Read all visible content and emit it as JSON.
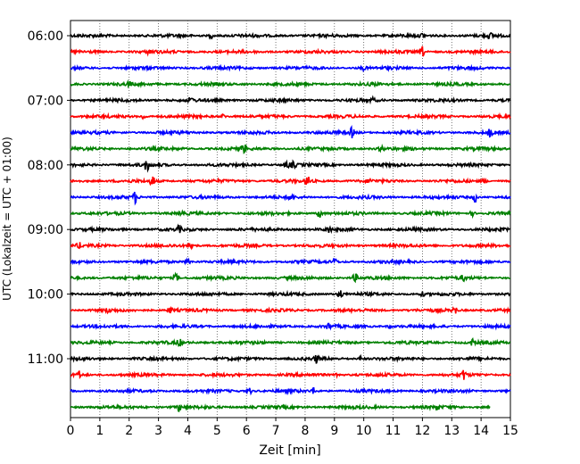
{
  "chart_data": {
    "type": "line",
    "title": "",
    "xlabel": "Zeit  [min]",
    "ylabel": "UTC (Lokalzeit = UTC + 01:00)",
    "xlim": [
      0,
      15
    ],
    "xticks": [
      0,
      1,
      2,
      3,
      4,
      5,
      6,
      7,
      8,
      9,
      10,
      11,
      12,
      13,
      14,
      15
    ],
    "grid": "vertical dotted lines at each minute",
    "yticks": [
      "06:00",
      "07:00",
      "08:00",
      "09:00",
      "10:00",
      "11:00"
    ],
    "trace_interval_min": 15,
    "color_cycle": [
      "#000000",
      "#ff0000",
      "#0000ff",
      "#008000"
    ],
    "traces": [
      {
        "start": "06:00",
        "end_min": 15,
        "events": [
          [
            4.8,
            0.35
          ],
          [
            12.0,
            0.3
          ],
          [
            14.3,
            0.4
          ]
        ]
      },
      {
        "start": "06:15",
        "end_min": 15,
        "events": [
          [
            2.7,
            0.3
          ],
          [
            12.0,
            0.8
          ]
        ]
      },
      {
        "start": "06:30",
        "end_min": 15,
        "events": [
          [
            10.0,
            0.3
          ]
        ]
      },
      {
        "start": "06:45",
        "end_min": 15,
        "events": [
          [
            2.0,
            0.3
          ],
          [
            10.3,
            0.25
          ]
        ]
      },
      {
        "start": "07:00",
        "end_min": 15,
        "events": [
          [
            4.1,
            0.4
          ],
          [
            10.3,
            0.3
          ]
        ]
      },
      {
        "start": "07:15",
        "end_min": 15,
        "events": [
          [
            2.5,
            0.5
          ],
          [
            5.2,
            0.3
          ]
        ]
      },
      {
        "start": "07:30",
        "end_min": 15,
        "events": [
          [
            9.6,
            0.8
          ],
          [
            14.3,
            0.6
          ]
        ]
      },
      {
        "start": "07:45",
        "end_min": 15,
        "events": [
          [
            5.9,
            0.8
          ],
          [
            10.6,
            0.4
          ]
        ]
      },
      {
        "start": "08:00",
        "end_min": 15,
        "events": [
          [
            2.6,
            1.0
          ],
          [
            7.4,
            0.5
          ],
          [
            7.6,
            0.5
          ]
        ]
      },
      {
        "start": "08:15",
        "end_min": 15,
        "events": [
          [
            2.8,
            0.9
          ],
          [
            8.1,
            0.9
          ],
          [
            10.2,
            0.3
          ],
          [
            14.1,
            0.4
          ]
        ]
      },
      {
        "start": "08:30",
        "end_min": 15,
        "events": [
          [
            2.2,
            0.9
          ],
          [
            7.5,
            0.5
          ],
          [
            13.8,
            0.8
          ]
        ]
      },
      {
        "start": "08:45",
        "end_min": 15,
        "events": [
          [
            3.8,
            0.4
          ],
          [
            8.5,
            0.8
          ],
          [
            13.7,
            0.4
          ]
        ]
      },
      {
        "start": "09:00",
        "end_min": 15,
        "events": [
          [
            3.7,
            0.5
          ],
          [
            8.8,
            0.5
          ]
        ]
      },
      {
        "start": "09:15",
        "end_min": 15,
        "events": [
          [
            0.3,
            0.4
          ],
          [
            4.1,
            0.7
          ]
        ]
      },
      {
        "start": "09:30",
        "end_min": 15,
        "events": [
          [
            4.0,
            0.7
          ],
          [
            9.0,
            0.6
          ]
        ]
      },
      {
        "start": "09:45",
        "end_min": 15,
        "events": [
          [
            3.6,
            0.8
          ],
          [
            9.7,
            0.7
          ],
          [
            13.4,
            0.4
          ]
        ]
      },
      {
        "start": "10:00",
        "end_min": 15,
        "events": [
          [
            9.2,
            0.8
          ],
          [
            12.0,
            0.3
          ]
        ]
      },
      {
        "start": "10:15",
        "end_min": 15,
        "events": [
          [
            1.3,
            0.4
          ],
          [
            3.4,
            0.5
          ],
          [
            13.1,
            0.7
          ]
        ]
      },
      {
        "start": "10:30",
        "end_min": 15,
        "events": [
          [
            8.8,
            0.5
          ],
          [
            10.9,
            0.3
          ]
        ]
      },
      {
        "start": "10:45",
        "end_min": 15,
        "events": [
          [
            3.7,
            0.6
          ],
          [
            13.7,
            0.5
          ]
        ]
      },
      {
        "start": "11:00",
        "end_min": 15,
        "events": [
          [
            8.4,
            0.7
          ],
          [
            9.9,
            0.3
          ]
        ]
      },
      {
        "start": "11:15",
        "end_min": 15,
        "events": [
          [
            0.3,
            0.5
          ],
          [
            9.1,
            0.4
          ],
          [
            13.4,
            0.8
          ]
        ]
      },
      {
        "start": "11:30",
        "end_min": 15,
        "events": [
          [
            6.1,
            0.5
          ],
          [
            8.3,
            0.5
          ]
        ]
      },
      {
        "start": "11:45",
        "end_min": 14.3,
        "events": [
          [
            3.7,
            0.6
          ],
          [
            12.5,
            0.3
          ]
        ]
      }
    ]
  }
}
